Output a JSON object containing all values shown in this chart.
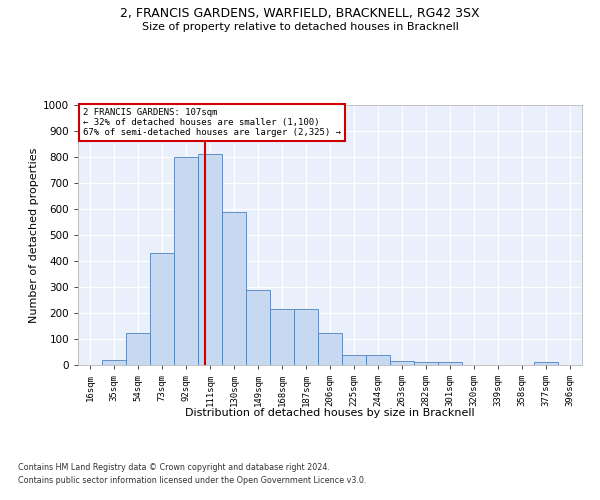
{
  "title1": "2, FRANCIS GARDENS, WARFIELD, BRACKNELL, RG42 3SX",
  "title2": "Size of property relative to detached houses in Bracknell",
  "xlabel": "Distribution of detached houses by size in Bracknell",
  "ylabel": "Number of detached properties",
  "footnote1": "Contains HM Land Registry data © Crown copyright and database right 2024.",
  "footnote2": "Contains public sector information licensed under the Open Government Licence v3.0.",
  "bar_labels": [
    "16sqm",
    "35sqm",
    "54sqm",
    "73sqm",
    "92sqm",
    "111sqm",
    "130sqm",
    "149sqm",
    "168sqm",
    "187sqm",
    "206sqm",
    "225sqm",
    "244sqm",
    "263sqm",
    "282sqm",
    "301sqm",
    "320sqm",
    "339sqm",
    "358sqm",
    "377sqm",
    "396sqm"
  ],
  "bar_values": [
    0,
    20,
    125,
    430,
    800,
    810,
    590,
    290,
    215,
    215,
    125,
    40,
    40,
    15,
    10,
    10,
    0,
    0,
    0,
    10,
    0
  ],
  "bar_color": "#c6d9f0",
  "bar_edge_color": "#4f81bd",
  "background_color": "#eaf0fb",
  "grid_color": "#ffffff",
  "vline_color": "#cc0000",
  "vline_position": 4.79,
  "annotation_title": "2 FRANCIS GARDENS: 107sqm",
  "annotation_line1": "← 32% of detached houses are smaller (1,100)",
  "annotation_line2": "67% of semi-detached houses are larger (2,325) →",
  "annotation_box_edge": "#cc0000",
  "ylim": [
    0,
    1000
  ],
  "yticks": [
    0,
    100,
    200,
    300,
    400,
    500,
    600,
    700,
    800,
    900,
    1000
  ]
}
